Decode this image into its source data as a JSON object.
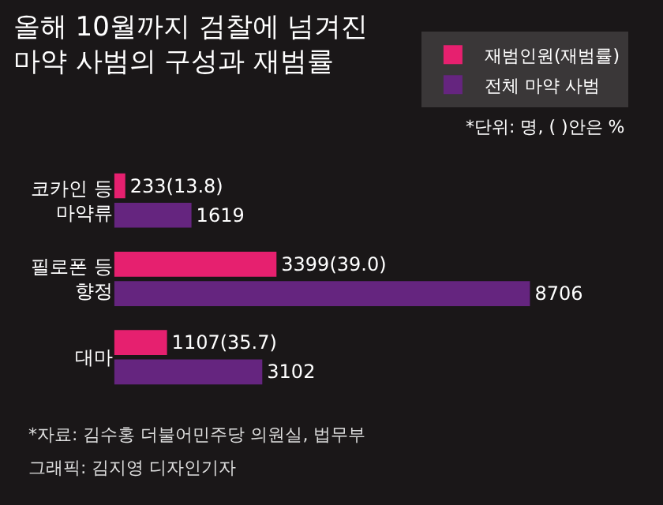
{
  "chart_data": {
    "type": "bar",
    "orientation": "horizontal",
    "title": "올해 10월까지 검찰에 넘겨진\n마약 사범의 구성과 재범률",
    "categories": [
      "코카인 등\n마약류",
      "필로폰 등\n향정",
      "대마"
    ],
    "series": [
      {
        "name": "재범인원(재범률)",
        "color": "#e6206f",
        "values": [
          233,
          3399,
          1107
        ],
        "value_labels": [
          "233(13.8)",
          "3399(39.0)",
          "1107(35.7)"
        ]
      },
      {
        "name": "전체 마약 사범",
        "color": "#65257f",
        "values": [
          1619,
          8706,
          3102
        ],
        "value_labels": [
          "1619",
          "8706",
          "3102"
        ]
      }
    ],
    "legend": "top right",
    "grid": false,
    "tick_labels": "y",
    "annotations": [
      "*단위: 명, ( )안은 %",
      "*자료: 김수홍 더불어민주당 의원실, 법무부",
      "그래픽: 김지영 디자인기자"
    ]
  }
}
